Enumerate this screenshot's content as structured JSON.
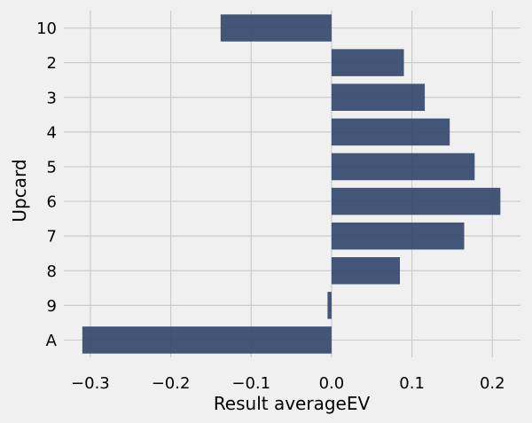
{
  "chart_data": {
    "type": "bar",
    "orientation": "horizontal",
    "categories": [
      "10",
      "2",
      "3",
      "4",
      "5",
      "6",
      "7",
      "8",
      "9",
      "A"
    ],
    "values": [
      -0.138,
      0.09,
      0.116,
      0.147,
      0.178,
      0.21,
      0.165,
      0.085,
      -0.005,
      -0.31
    ],
    "xlabel": "Result averageEV",
    "ylabel": "Upcard",
    "xlim": [
      -0.333,
      0.235
    ],
    "xticks": [
      "−0.3",
      "−0.2",
      "−0.1",
      "0.0",
      "0.1",
      "0.2"
    ],
    "xtick_values": [
      -0.3,
      -0.2,
      -0.1,
      0.0,
      0.1,
      0.2
    ],
    "grid": true,
    "bar_color": "#34496e",
    "background": "#f0f0f0",
    "grid_color": "#cbcbcb"
  }
}
